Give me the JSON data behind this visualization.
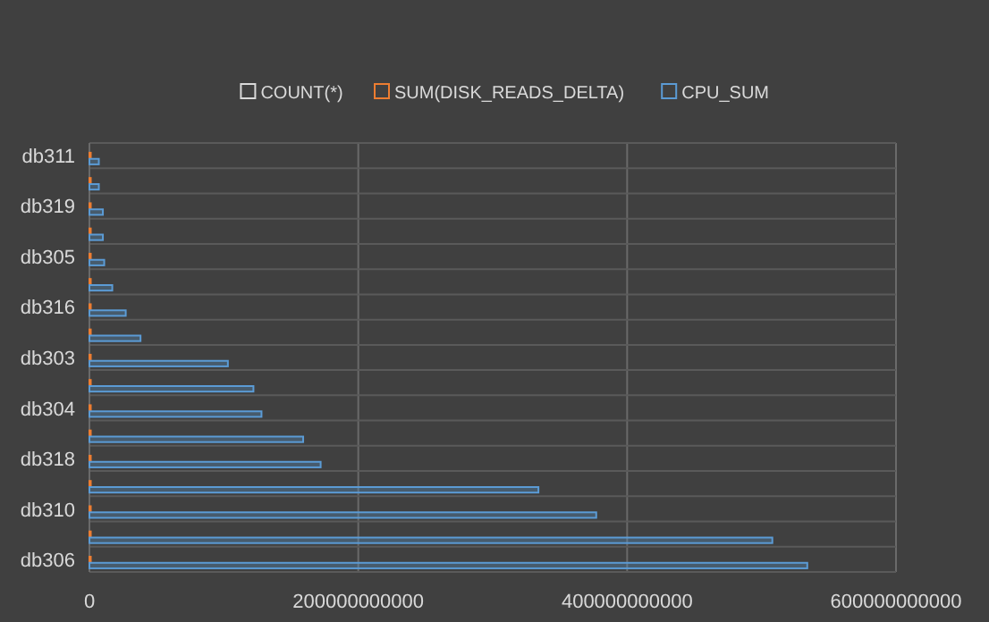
{
  "chart_data": {
    "type": "bar",
    "orientation": "horizontal",
    "categories": [
      "db311",
      null,
      "db319",
      null,
      "db305",
      null,
      "db316",
      null,
      "db303",
      null,
      "db304",
      null,
      "db318",
      null,
      "db310",
      null,
      "db306"
    ],
    "series": [
      {
        "name": "COUNT(*)",
        "color": "#d9d9d9",
        "values": [
          0,
          0,
          0,
          0,
          0,
          0,
          0,
          0,
          0,
          0,
          0,
          0,
          0,
          0,
          0,
          0,
          0
        ]
      },
      {
        "name": "SUM(DISK_READS_DELTA)",
        "color": "#ed7d31",
        "values": [
          1000000000,
          1000000000,
          1000000000,
          1000000000,
          1000000000,
          1000000000,
          1000000000,
          1000000000,
          1000000000,
          1000000000,
          1000000000,
          1000000000,
          1000000000,
          1000000000,
          1000000000,
          1000000000,
          1000000000
        ]
      },
      {
        "name": "CPU_SUM",
        "color": "#5b9bd5",
        "values": [
          7000000000,
          7000000000,
          10000000000,
          10000000000,
          11000000000,
          17000000000,
          27000000000,
          38000000000,
          103000000000,
          122000000000,
          128000000000,
          159000000000,
          172000000000,
          334000000000,
          377000000000,
          508000000000,
          534000000000
        ]
      }
    ],
    "xlim": [
      0,
      600000000000
    ],
    "xticks": [
      0,
      200000000000,
      400000000000,
      600000000000
    ],
    "grid": true,
    "legend": "top"
  }
}
